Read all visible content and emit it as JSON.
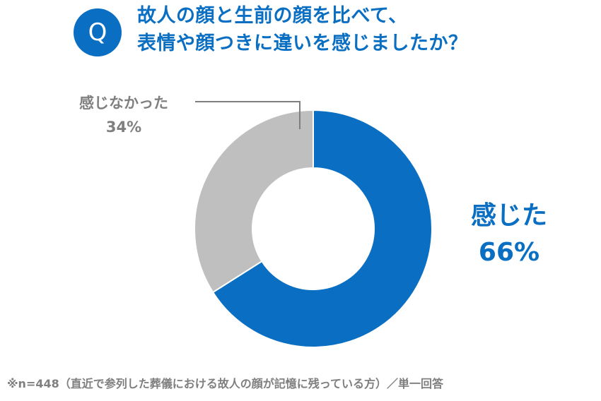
{
  "question": {
    "badge": "Q",
    "line1": "故人の顔と生前の顔を比べて、",
    "line2": "表情や顔つきに違いを感じましたか？"
  },
  "chart_data": {
    "type": "pie",
    "title": "",
    "categories": [
      "感じた",
      "感じなかった"
    ],
    "values": [
      66,
      34
    ],
    "value_labels": [
      "66%",
      "34%"
    ],
    "colors": [
      "#0a6fc2",
      "#bfbfbf"
    ],
    "hole": "donut",
    "labels": {
      "felt": {
        "name": "感じた",
        "value": "66%"
      },
      "not_felt": {
        "name": "感じなかった",
        "value": "34%"
      }
    }
  },
  "footnote": "※n=448（直近で参列した葬儀における故人の顔が記憶に残っている方）／単一回答"
}
